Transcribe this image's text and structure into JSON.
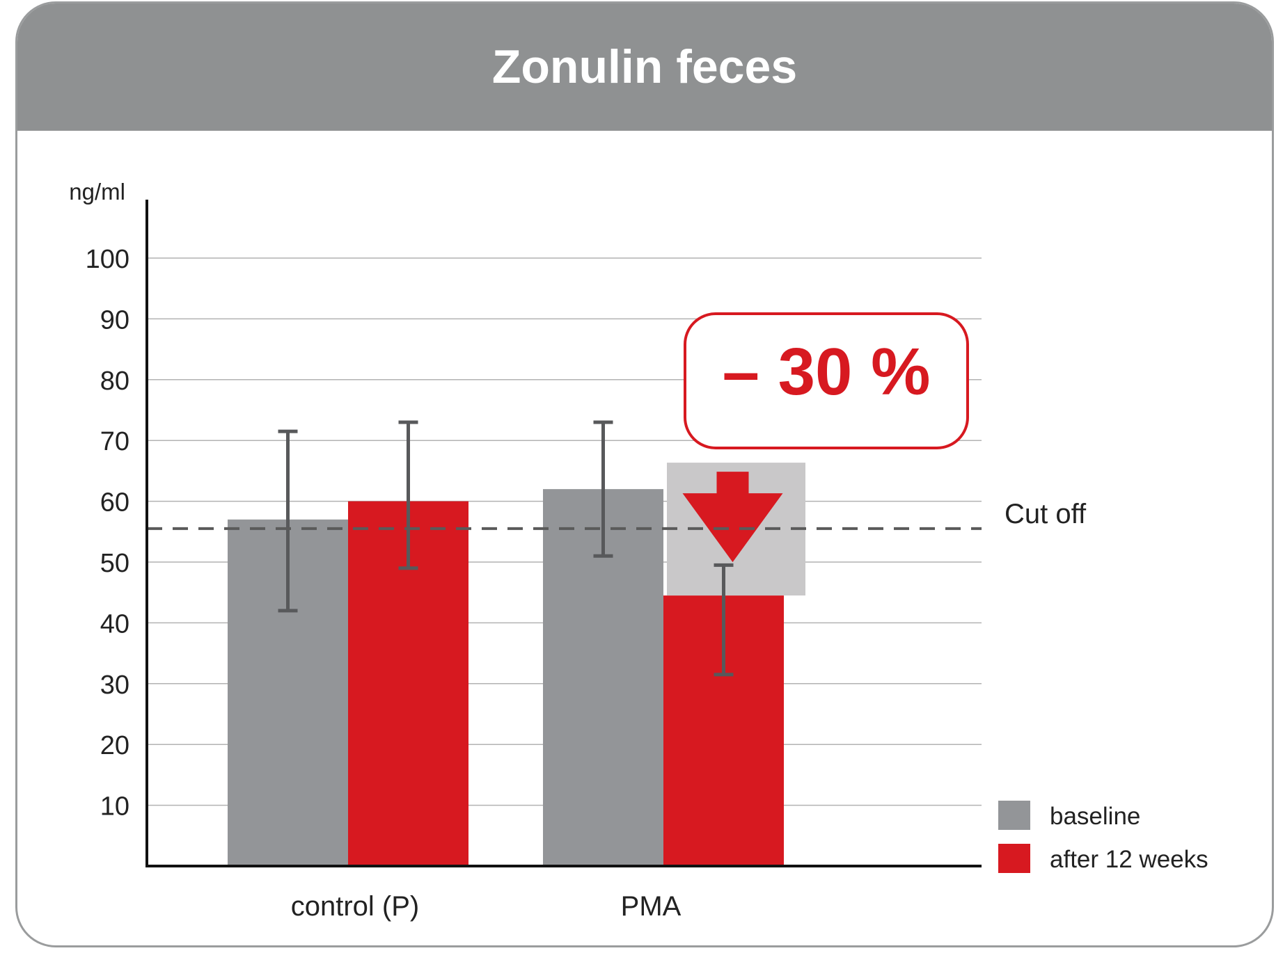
{
  "chart_data": {
    "type": "bar",
    "title": "Zonulin feces",
    "ylabel": "ng/ml",
    "xlabel": "",
    "ylim": [
      0,
      100
    ],
    "yticks": [
      10,
      20,
      30,
      40,
      50,
      60,
      70,
      80,
      90,
      100
    ],
    "categories": [
      "control (P)",
      "PMA"
    ],
    "series": [
      {
        "name": "baseline",
        "color": "#939598",
        "values": [
          57,
          62
        ],
        "error_low": [
          42,
          51
        ],
        "error_high": [
          71.5,
          73
        ]
      },
      {
        "name": "after 12 weeks",
        "color": "#d71920",
        "values": [
          60,
          44.5
        ],
        "error_low": [
          49,
          31.5
        ],
        "error_high": [
          73,
          49.5
        ]
      }
    ],
    "reference_line": {
      "label": "Cut off",
      "value": 55.5,
      "style": "dashed"
    },
    "annotation": {
      "text": "– 30 %",
      "color": "#d71920"
    },
    "legend_position": "bottom-right",
    "grid": true
  }
}
